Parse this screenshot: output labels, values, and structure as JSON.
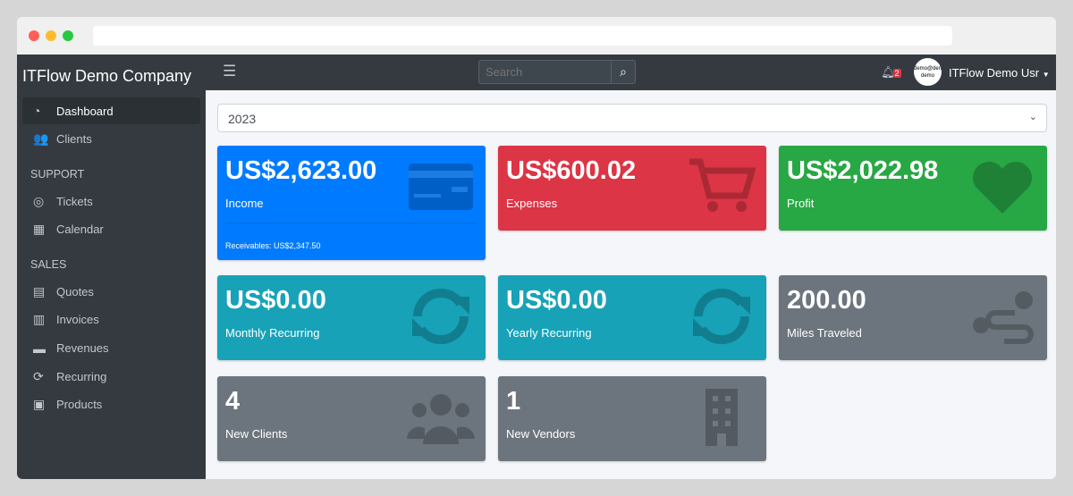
{
  "sidebar": {
    "brand": "ITFlow Demo Company",
    "items": [
      {
        "label": "Dashboard",
        "icon": "tachometer-icon"
      },
      {
        "label": "Clients",
        "icon": "users-icon"
      }
    ],
    "support_header": "SUPPORT",
    "support": [
      {
        "label": "Tickets",
        "icon": "life-ring-icon"
      },
      {
        "label": "Calendar",
        "icon": "calendar-icon"
      }
    ],
    "sales_header": "SALES",
    "sales": [
      {
        "label": "Quotes",
        "icon": "file-icon"
      },
      {
        "label": "Invoices",
        "icon": "invoice-icon"
      },
      {
        "label": "Revenues",
        "icon": "credit-card-icon"
      },
      {
        "label": "Recurring",
        "icon": "sync-icon"
      },
      {
        "label": "Products",
        "icon": "box-icon"
      }
    ]
  },
  "topbar": {
    "search_placeholder": "Search",
    "notifications": "2",
    "avatar_text": "demo@demo demo",
    "user": "ITFlow Demo Usr"
  },
  "year": "2023",
  "cards": [
    {
      "value": "US$2,623.00",
      "label": "Income",
      "footer": "Receivables: US$2,347.50",
      "color": "#007bff"
    },
    {
      "value": "US$600.02",
      "label": "Expenses",
      "color": "#dc3545"
    },
    {
      "value": "US$2,022.98",
      "label": "Profit",
      "color": "#28a745"
    },
    {
      "value": "US$0.00",
      "label": "Monthly Recurring",
      "color": "#17a2b8"
    },
    {
      "value": "US$0.00",
      "label": "Yearly Recurring",
      "color": "#17a2b8"
    },
    {
      "value": "200.00",
      "label": "Miles Traveled",
      "color": "#6c757d"
    },
    {
      "value": "4",
      "label": "New Clients",
      "color": "#6c757d"
    },
    {
      "value": "1",
      "label": "New Vendors",
      "color": "#6c757d"
    }
  ]
}
